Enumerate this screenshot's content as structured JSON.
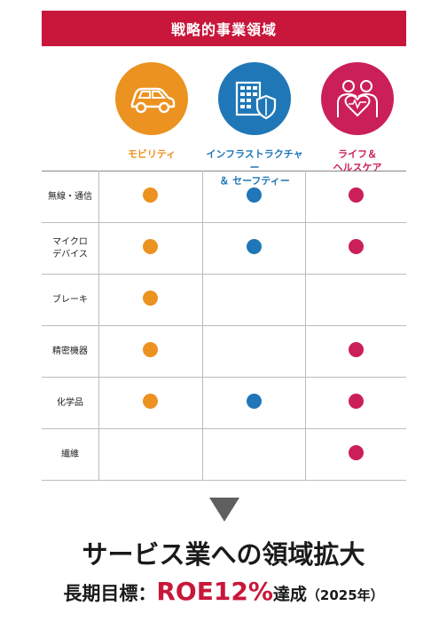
{
  "header": {
    "title": "戦略的事業領域"
  },
  "areas": [
    {
      "label_line1": "モビリティ",
      "label_line2": "",
      "color": "#ec9220",
      "icon": "car-icon"
    },
    {
      "label_line1": "インフラストラクチャー",
      "label_line2": "＆ セーフティー",
      "color": "#1f77b7",
      "icon": "building-shield-icon"
    },
    {
      "label_line1": "ライフ＆",
      "label_line2": "ヘルスケア",
      "color": "#cb1f5a",
      "icon": "family-heart-icon"
    }
  ],
  "rows": [
    {
      "line1": "無線・通信",
      "line2": "",
      "marks": [
        true,
        true,
        true
      ]
    },
    {
      "line1": "マイクロ",
      "line2": "デバイス",
      "marks": [
        true,
        true,
        true
      ]
    },
    {
      "line1": "ブレーキ",
      "line2": "",
      "marks": [
        true,
        false,
        false
      ]
    },
    {
      "line1": "精密機器",
      "line2": "",
      "marks": [
        true,
        false,
        true
      ]
    },
    {
      "line1": "化学品",
      "line2": "",
      "marks": [
        true,
        true,
        true
      ]
    },
    {
      "line1": "繊維",
      "line2": "",
      "marks": [
        false,
        false,
        true
      ]
    }
  ],
  "footer": {
    "headline": "サービス業への領域拡大",
    "goal_label": "長期目標：",
    "goal_value": "ROE12%",
    "goal_suffix": "達成",
    "goal_year": "（2025年）"
  }
}
